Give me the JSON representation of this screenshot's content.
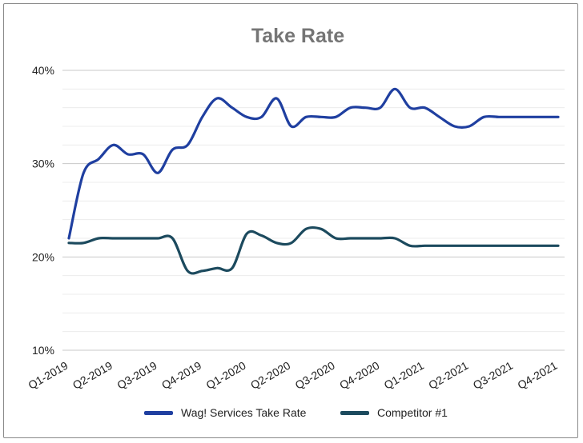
{
  "chart_data": {
    "type": "line",
    "title": "Take Rate",
    "xlabel": "",
    "ylabel": "",
    "ylim": [
      10,
      40
    ],
    "y_ticks": [
      "10%",
      "20%",
      "30%",
      "40%"
    ],
    "y_tick_values": [
      10,
      20,
      30,
      40
    ],
    "categories": [
      "Q1-2019",
      "Q2-2019",
      "Q3-2019",
      "Q4-2019",
      "Q1-2020",
      "Q2-2020",
      "Q3-2020",
      "Q4-2020",
      "Q1-2021",
      "Q2-2021",
      "Q3-2021",
      "Q4-2021"
    ],
    "legend_position": "bottom",
    "grid": true,
    "series": [
      {
        "name": "Wag! Services Take Rate",
        "color": "#1f3fa0",
        "x": [
          0,
          0.33,
          0.67,
          1,
          1.33,
          1.67,
          2,
          2.33,
          2.67,
          3,
          3.33,
          3.67,
          4,
          4.33,
          4.67,
          5,
          5.33,
          5.67,
          6,
          6.33,
          6.67,
          7,
          7.33,
          7.67,
          8,
          8.33,
          8.67,
          9,
          9.33,
          9.67,
          10,
          10.33,
          10.67,
          11
        ],
        "values": [
          22,
          29,
          30.5,
          32,
          31,
          31,
          29,
          31.5,
          32,
          35,
          37,
          36,
          35,
          35,
          37,
          34,
          35,
          35,
          35,
          36,
          36,
          36,
          38,
          36,
          36,
          35,
          34,
          34,
          35,
          35,
          35,
          35,
          35,
          35
        ]
      },
      {
        "name": "Competitor #1",
        "color": "#1c4a5e",
        "x": [
          0,
          0.33,
          0.67,
          1,
          1.33,
          1.67,
          2,
          2.33,
          2.67,
          3,
          3.33,
          3.67,
          4,
          4.33,
          4.67,
          5,
          5.33,
          5.67,
          6,
          6.33,
          6.67,
          7,
          7.33,
          7.67,
          8,
          8.33,
          8.67,
          9,
          9.33,
          9.67,
          10,
          10.33,
          10.67,
          11
        ],
        "values": [
          21.5,
          21.5,
          22,
          22,
          22,
          22,
          22,
          22,
          18.5,
          18.5,
          18.8,
          18.8,
          22.5,
          22.3,
          21.5,
          21.5,
          23,
          23,
          22,
          22,
          22,
          22,
          22,
          21.2,
          21.2,
          21.2,
          21.2,
          21.2,
          21.2,
          21.2,
          21.2,
          21.2,
          21.2,
          21.2
        ]
      }
    ]
  }
}
